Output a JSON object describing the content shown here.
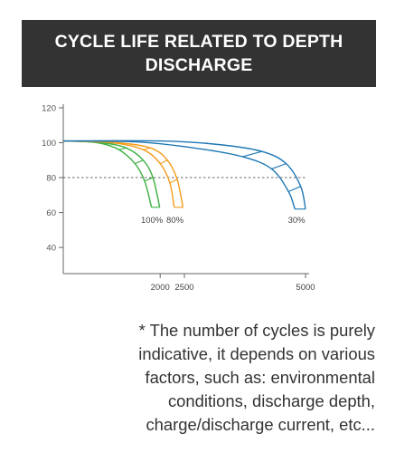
{
  "title": {
    "line1": "CYCLE LIFE RELATED TO DEPTH",
    "line2": "DISCHARGE"
  },
  "chart_data": {
    "type": "line",
    "title": "CYCLE LIFE RELATED TO DEPTH DISCHARGE",
    "xlabel": "",
    "ylabel": "",
    "xlim": [
      0,
      5000
    ],
    "ylim": [
      25,
      120
    ],
    "x_ticks": [
      2000,
      2500,
      5000
    ],
    "y_ticks": [
      40,
      60,
      80,
      100,
      120
    ],
    "reference_line": {
      "y": 80,
      "style": "dashed"
    },
    "grid": false,
    "series": [
      {
        "name": "100%",
        "color": "#3cb043",
        "upper": {
          "x": [
            0,
            800,
            1300,
            1650,
            1850,
            1990
          ],
          "y": [
            101,
            100,
            97,
            90,
            80,
            63
          ]
        },
        "lower": {
          "x": [
            0,
            700,
            1150,
            1480,
            1680,
            1820
          ],
          "y": [
            101,
            100,
            96,
            88,
            78,
            63
          ]
        }
      },
      {
        "name": "80%",
        "color": "#f39c1b",
        "upper": {
          "x": [
            0,
            1100,
            1800,
            2150,
            2350,
            2470
          ],
          "y": [
            101,
            100,
            97,
            90,
            79,
            63
          ]
        },
        "lower": {
          "x": [
            0,
            1000,
            1650,
            2000,
            2200,
            2290
          ],
          "y": [
            101,
            100,
            96,
            88,
            77,
            63
          ]
        }
      },
      {
        "name": "30%",
        "color": "#1f78b4",
        "upper": {
          "x": [
            0,
            2000,
            3200,
            4100,
            4600,
            4900,
            5000
          ],
          "y": [
            101,
            101,
            99,
            95,
            88,
            75,
            62
          ]
        },
        "lower": {
          "x": [
            0,
            1500,
            2700,
            3700,
            4300,
            4650,
            4780
          ],
          "y": [
            101,
            100.5,
            97,
            92,
            85,
            72,
            62
          ]
        }
      }
    ]
  },
  "note": {
    "lines": [
      "* The number of cycles is purely",
      "indicative, it depends on various",
      "factors, such as: environmental",
      "conditions, discharge depth,",
      "charge/discharge current, etc..."
    ]
  }
}
